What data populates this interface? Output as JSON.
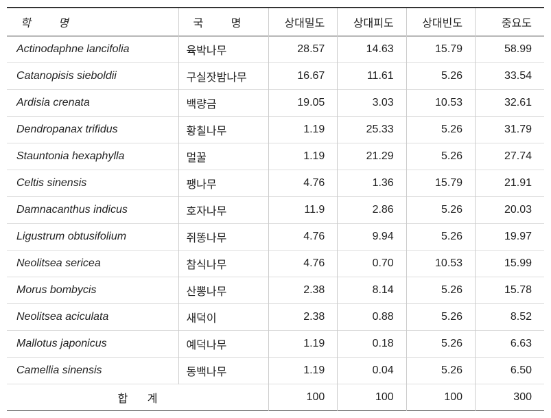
{
  "table": {
    "columns": [
      {
        "label": "학   명",
        "key": "sci",
        "class": "col-sci header-spaced"
      },
      {
        "label": "국   명",
        "key": "kor",
        "class": "col-kor header-spaced2"
      },
      {
        "label": "상대밀도",
        "key": "v1",
        "class": "col-num"
      },
      {
        "label": "상대피도",
        "key": "v2",
        "class": "col-num"
      },
      {
        "label": "상대빈도",
        "key": "v3",
        "class": "col-num"
      },
      {
        "label": "중요도",
        "key": "v4",
        "class": "col-num"
      }
    ],
    "rows": [
      {
        "sci": "Actinodaphne lancifolia",
        "kor": "육박나무",
        "v1": "28.57",
        "v2": "14.63",
        "v3": "15.79",
        "v4": "58.99"
      },
      {
        "sci": "Catanopisis sieboldii",
        "kor": "구실잣밤나무",
        "v1": "16.67",
        "v2": "11.61",
        "v3": "5.26",
        "v4": "33.54"
      },
      {
        "sci": "Ardisia crenata",
        "kor": "백량금",
        "v1": "19.05",
        "v2": "3.03",
        "v3": "10.53",
        "v4": "32.61"
      },
      {
        "sci": "Dendropanax trifidus",
        "kor": "황칠나무",
        "v1": "1.19",
        "v2": "25.33",
        "v3": "5.26",
        "v4": "31.79"
      },
      {
        "sci": "Stauntonia hexaphylla",
        "kor": "멀꿀",
        "v1": "1.19",
        "v2": "21.29",
        "v3": "5.26",
        "v4": "27.74"
      },
      {
        "sci": "Celtis sinensis",
        "kor": "팽나무",
        "v1": "4.76",
        "v2": "1.36",
        "v3": "15.79",
        "v4": "21.91"
      },
      {
        "sci": "Damnacanthus indicus",
        "kor": "호자나무",
        "v1": "11.9",
        "v2": "2.86",
        "v3": "5.26",
        "v4": "20.03"
      },
      {
        "sci": "Ligustrum obtusifolium",
        "kor": "쥐똥나무",
        "v1": "4.76",
        "v2": "9.94",
        "v3": "5.26",
        "v4": "19.97"
      },
      {
        "sci": "Neolitsea sericea",
        "kor": "참식나무",
        "v1": "4.76",
        "v2": "0.70",
        "v3": "10.53",
        "v4": "15.99"
      },
      {
        "sci": "Morus bombycis",
        "kor": "산뽕나무",
        "v1": "2.38",
        "v2": "8.14",
        "v3": "5.26",
        "v4": "15.78"
      },
      {
        "sci": "Neolitsea aciculata",
        "kor": "새덕이",
        "v1": "2.38",
        "v2": "0.88",
        "v3": "5.26",
        "v4": "8.52"
      },
      {
        "sci": "Mallotus japonicus",
        "kor": "예덕나무",
        "v1": "1.19",
        "v2": "0.18",
        "v3": "5.26",
        "v4": "6.63"
      },
      {
        "sci": "Camellia sinensis",
        "kor": "동백나무",
        "v1": "1.19",
        "v2": "0.04",
        "v3": "5.26",
        "v4": "6.50"
      }
    ],
    "total": {
      "label": "합   계",
      "v1": "100",
      "v2": "100",
      "v3": "100",
      "v4": "300"
    },
    "styling": {
      "border_color_strong": "#333333",
      "border_color_light": "#cccccc",
      "row_border_color": "#dddddd",
      "text_color": "#222222",
      "background_color": "#ffffff",
      "font_size": 16,
      "sci_italic": true,
      "num_align": "right"
    }
  }
}
